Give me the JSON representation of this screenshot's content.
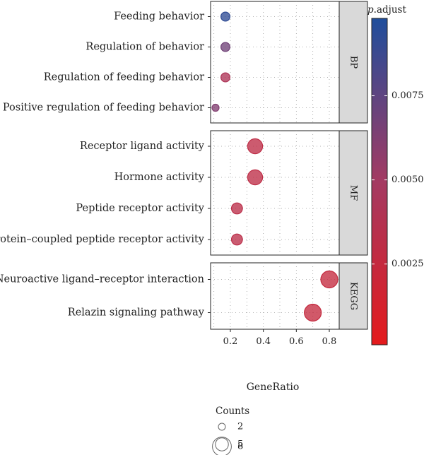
{
  "chart_data": {
    "type": "scatter",
    "xlabel": "GeneRatio",
    "xlim": [
      0.08,
      0.86
    ],
    "x_ticks": [
      0.2,
      0.4,
      0.6,
      0.8
    ],
    "x_tick_labels": [
      "0.2",
      "0.4",
      "0.6",
      "0.8"
    ],
    "grid": true,
    "panels": [
      {
        "label": "BP",
        "terms": [
          {
            "term": "Feeding behavior",
            "gene_ratio": 0.17,
            "count": 3,
            "p_adjust": 0.0092
          },
          {
            "term": "Regulation of behavior",
            "gene_ratio": 0.17,
            "count": 3,
            "p_adjust": 0.0068
          },
          {
            "term": "Regulation of feeding behavior",
            "gene_ratio": 0.17,
            "count": 3,
            "p_adjust": 0.0042
          },
          {
            "term": "Positive regulation of feeding behavior",
            "gene_ratio": 0.11,
            "count": 2,
            "p_adjust": 0.0062
          }
        ]
      },
      {
        "label": "MF",
        "terms": [
          {
            "term": "Receptor ligand activity",
            "gene_ratio": 0.35,
            "count": 6,
            "p_adjust": 0.003
          },
          {
            "term": "Hormone activity",
            "gene_ratio": 0.35,
            "count": 6,
            "p_adjust": 0.003
          },
          {
            "term": "Peptide receptor activity",
            "gene_ratio": 0.24,
            "count": 4,
            "p_adjust": 0.0032
          },
          {
            "term": "G protein–coupled peptide receptor activity",
            "gene_ratio": 0.24,
            "count": 4,
            "p_adjust": 0.0032
          }
        ]
      },
      {
        "label": "KEGG",
        "terms": [
          {
            "term": "Neuroactive ligand–receptor interaction",
            "gene_ratio": 0.8,
            "count": 7,
            "p_adjust": 0.0025
          },
          {
            "term": "Relazin signaling pathway",
            "gene_ratio": 0.7,
            "count": 7,
            "p_adjust": 0.0025
          }
        ]
      }
    ],
    "color_legend": {
      "title_italic": "p",
      "title_rest": ".adjust",
      "ticks": [
        0.0075,
        0.005,
        0.0025
      ],
      "tick_labels": [
        "0.0075",
        "0.0050",
        "0.0025"
      ],
      "range": [
        0.0001,
        0.0098
      ],
      "low_color": "#e41a1c",
      "high_color": "#1f4e9c"
    },
    "size_legend": {
      "title": "Counts",
      "values": [
        2,
        5,
        8
      ],
      "labels": [
        "2",
        "5",
        "8"
      ]
    }
  }
}
